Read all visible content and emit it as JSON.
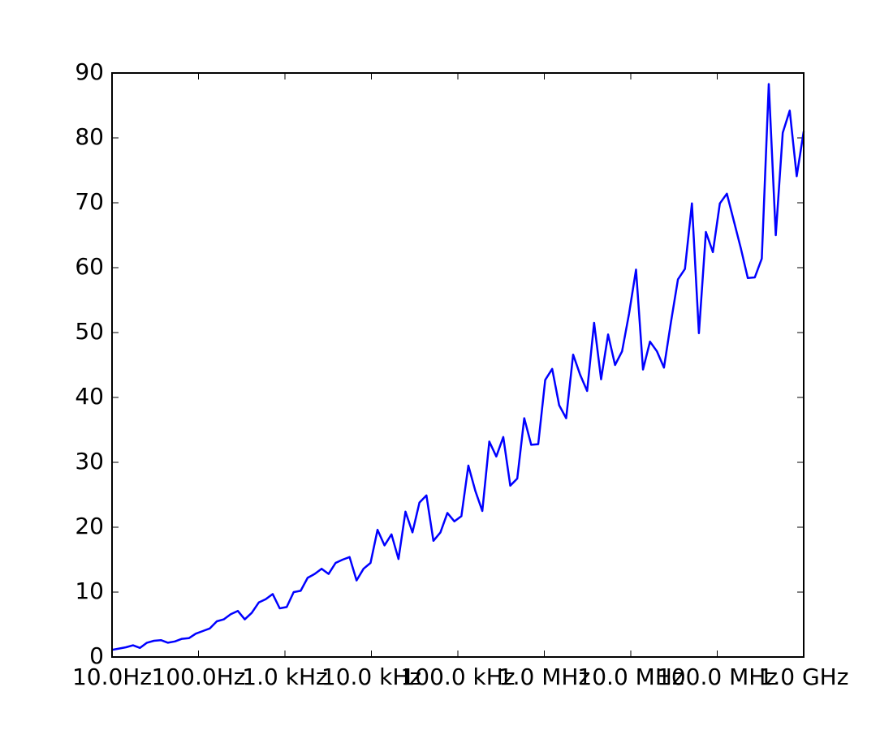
{
  "chart_data": {
    "type": "line",
    "xscale": "log",
    "xlim": [
      10,
      1000000000
    ],
    "ylim": [
      0,
      90
    ],
    "xticks": [
      {
        "value": 10,
        "label": "10.0Hz"
      },
      {
        "value": 100,
        "label": "100.0Hz"
      },
      {
        "value": 1000,
        "label": "1.0 kHz"
      },
      {
        "value": 10000,
        "label": "10.0 kHz"
      },
      {
        "value": 100000,
        "label": "100.0 kHz"
      },
      {
        "value": 1000000,
        "label": "1.0 MHz"
      },
      {
        "value": 10000000,
        "label": "10.0 MHz"
      },
      {
        "value": 100000000,
        "label": "100.0 MHz"
      },
      {
        "value": 1000000000,
        "label": "1.0 GHz"
      }
    ],
    "yticks": [
      0,
      10,
      20,
      30,
      40,
      50,
      60,
      70,
      80,
      90
    ],
    "x": [
      10,
      12.04,
      14.51,
      17.48,
      21.05,
      25.35,
      30.53,
      36.78,
      44.31,
      53.37,
      64.28,
      77.43,
      93.26,
      112.3,
      135.3,
      163,
      196,
      236,
      285,
      343,
      413,
      498,
      599,
      722,
      870,
      1048,
      1262,
      1520,
      1830,
      2205,
      2656,
      3199,
      3853,
      4642,
      5591,
      6734,
      8111,
      9771,
      11770,
      14177,
      17076,
      20569,
      24775,
      29843,
      35946,
      43299,
      52154,
      62821,
      75670,
      91148,
      109789,
      132245,
      159200,
      191800,
      231000,
      278300,
      335200,
      403800,
      486400,
      585800,
      705600,
      849900,
      1024000,
      1233000,
      1485000,
      1789000,
      2154000,
      2595000,
      3126000,
      3765000,
      4535000,
      5463000,
      6580000,
      7926000,
      9546000,
      11500000,
      13850000,
      16680000,
      20090000,
      24200000,
      29150000,
      35120000,
      42300000,
      50950000,
      61370000,
      73920000,
      89040000,
      107200000,
      129200000,
      155600000,
      187400000,
      225700000,
      271900000,
      327500000,
      394500000,
      475200000,
      572400000,
      689400000,
      830400000,
      1000000000
    ],
    "series": [
      {
        "color": "#0000ff",
        "values": [
          1.1,
          1.3,
          1.5,
          1.8,
          1.4,
          2.2,
          2.5,
          2.6,
          2.2,
          2.4,
          2.8,
          2.9,
          3.6,
          4.0,
          4.4,
          5.5,
          5.8,
          6.6,
          7.1,
          5.8,
          6.8,
          8.4,
          8.9,
          9.7,
          7.5,
          7.7,
          10.0,
          10.2,
          12.2,
          12.8,
          13.6,
          12.8,
          14.5,
          15.0,
          15.4,
          11.8,
          13.6,
          14.5,
          19.6,
          17.2,
          18.9,
          15.1,
          22.4,
          19.2,
          23.8,
          24.9,
          17.9,
          19.2,
          22.2,
          20.9,
          21.7,
          29.5,
          25.6,
          22.5,
          33.2,
          30.9,
          33.9,
          26.4,
          27.5,
          36.8,
          32.7,
          32.8,
          42.7,
          44.4,
          38.8,
          36.8,
          46.6,
          43.5,
          41.0,
          51.5,
          42.8,
          49.7,
          45.0,
          47.1,
          52.9,
          59.7,
          44.3,
          48.6,
          47.1,
          44.6,
          51.6,
          58.2,
          59.8,
          69.9,
          49.9,
          65.5,
          62.4,
          69.9,
          71.4,
          67.2,
          63.0,
          58.4,
          58.5,
          61.4,
          88.3,
          65.0,
          80.8,
          84.2,
          74.1,
          81.0
        ]
      }
    ]
  }
}
